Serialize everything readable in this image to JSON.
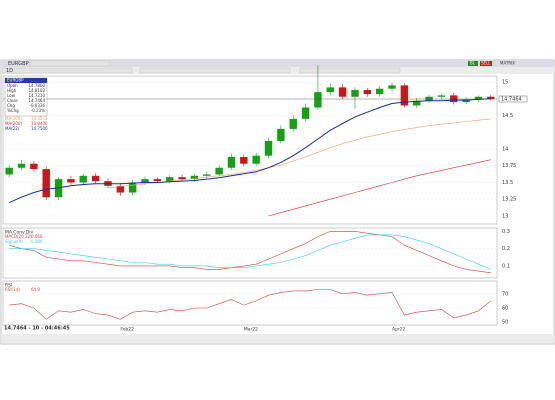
{
  "toolbar": {
    "symbol": "EURGBP",
    "interval": "1D",
    "status_items": [
      "BL",
      "SELL",
      "MATRIX"
    ]
  },
  "data_box": {
    "title": "EURGBP",
    "rows": [
      [
        "Open",
        "14.7800"
      ],
      [
        "High",
        "14.8102"
      ],
      [
        "Low",
        "14.7210"
      ],
      [
        "Close",
        "14.7464"
      ],
      [
        "Chg",
        "-0.0336"
      ],
      [
        "%Chg",
        "-0.23%"
      ]
    ]
  },
  "status": "14.7464 - 10 - 04:46:45",
  "xticks": [
    {
      "index": 9,
      "label": "Feb22"
    },
    {
      "index": 19,
      "label": "Mar22"
    },
    {
      "index": 31,
      "label": "Apr22"
    }
  ],
  "chart_data": [
    {
      "type": "candlestick",
      "ylim": [
        12.88,
        15.09
      ],
      "yticks": [
        13,
        13.25,
        13.5,
        13.75,
        14,
        14.5,
        15
      ],
      "grid": true,
      "open": [
        13.62,
        13.72,
        13.78,
        13.7,
        13.28,
        13.55,
        13.5,
        13.6,
        13.52,
        13.45,
        13.35,
        13.5,
        13.55,
        13.52,
        13.58,
        13.55,
        13.6,
        13.62,
        13.72,
        13.88,
        13.78,
        13.9,
        14.12,
        14.3,
        14.45,
        14.62,
        14.85,
        14.92,
        14.78,
        14.88,
        14.82,
        14.9,
        14.95,
        14.65,
        14.72,
        14.78,
        14.8,
        14.7,
        14.74,
        14.78
      ],
      "high": [
        13.76,
        13.84,
        13.82,
        13.74,
        13.58,
        13.6,
        13.63,
        13.64,
        13.56,
        13.49,
        13.54,
        13.59,
        13.58,
        13.61,
        13.62,
        13.63,
        13.66,
        13.76,
        13.93,
        13.92,
        13.94,
        14.17,
        14.35,
        14.5,
        14.68,
        15.25,
        14.98,
        14.97,
        14.92,
        14.91,
        14.94,
        14.99,
        14.98,
        14.76,
        14.81,
        14.83,
        14.84,
        14.77,
        14.8,
        14.81
      ],
      "low": [
        13.58,
        13.68,
        13.66,
        13.24,
        13.24,
        13.46,
        13.46,
        13.48,
        13.42,
        13.3,
        13.31,
        13.46,
        13.49,
        13.49,
        13.52,
        13.51,
        13.57,
        13.59,
        13.69,
        13.74,
        13.75,
        13.86,
        14.08,
        14.26,
        14.41,
        14.58,
        14.8,
        14.74,
        14.6,
        14.78,
        14.78,
        14.86,
        14.62,
        14.61,
        14.69,
        14.74,
        14.66,
        14.67,
        14.7,
        14.72
      ],
      "close": [
        13.72,
        13.78,
        13.7,
        13.28,
        13.55,
        13.5,
        13.6,
        13.52,
        13.45,
        13.35,
        13.5,
        13.55,
        13.52,
        13.58,
        13.55,
        13.6,
        13.62,
        13.72,
        13.88,
        13.78,
        13.9,
        14.12,
        14.3,
        14.45,
        14.62,
        14.85,
        14.92,
        14.78,
        14.88,
        14.82,
        14.9,
        14.95,
        14.65,
        14.72,
        14.78,
        14.8,
        14.7,
        14.74,
        14.78,
        14.7464
      ],
      "series": [
        {
          "name": "MA(100)",
          "legend_value": "14.4502",
          "color": "#f0a070",
          "values": [
            null,
            null,
            null,
            null,
            null,
            null,
            null,
            null,
            13.42,
            13.44,
            13.46,
            13.48,
            13.5,
            13.52,
            13.54,
            13.56,
            13.58,
            13.6,
            13.62,
            13.65,
            13.68,
            13.72,
            13.76,
            13.82,
            13.88,
            13.95,
            14.02,
            14.08,
            14.13,
            14.18,
            14.22,
            14.26,
            14.29,
            14.32,
            14.35,
            14.37,
            14.39,
            14.41,
            14.43,
            14.45
          ]
        },
        {
          "name": "MA(200)",
          "legend_value": "13.8400",
          "color": "#d03030",
          "values": [
            null,
            null,
            null,
            null,
            null,
            null,
            null,
            null,
            null,
            null,
            null,
            null,
            null,
            null,
            null,
            null,
            null,
            null,
            null,
            null,
            null,
            13.0,
            13.05,
            13.1,
            13.15,
            13.2,
            13.25,
            13.3,
            13.35,
            13.4,
            13.45,
            13.5,
            13.55,
            13.6,
            13.64,
            13.68,
            13.72,
            13.76,
            13.8,
            13.84
          ]
        },
        {
          "name": "MA(22)",
          "legend_value": "14.7500",
          "color": "#1a2aa0",
          "values": [
            13.2,
            13.28,
            13.35,
            13.4,
            13.42,
            13.45,
            13.47,
            13.48,
            13.48,
            13.48,
            13.49,
            13.5,
            13.5,
            13.51,
            13.52,
            13.53,
            13.55,
            13.57,
            13.6,
            13.63,
            13.66,
            13.72,
            13.8,
            13.9,
            14.02,
            14.15,
            14.28,
            14.38,
            14.48,
            14.55,
            14.62,
            14.68,
            14.7,
            14.71,
            14.72,
            14.72,
            14.73,
            14.73,
            14.74,
            14.75
          ]
        }
      ]
    },
    {
      "type": "line",
      "title": "MA.Conv.Div",
      "ylim": [
        0.03,
        0.32
      ],
      "yticks": [
        0.1,
        0.2,
        0.3
      ],
      "grid": true,
      "series": [
        {
          "name": "MACD(26,12)",
          "legend_value": "0.060",
          "color": "#d04040",
          "values": [
            0.22,
            0.2,
            0.19,
            0.15,
            0.14,
            0.13,
            0.13,
            0.12,
            0.11,
            0.1,
            0.1,
            0.1,
            0.1,
            0.1,
            0.09,
            0.09,
            0.08,
            0.08,
            0.09,
            0.1,
            0.11,
            0.14,
            0.17,
            0.2,
            0.23,
            0.27,
            0.3,
            0.3,
            0.3,
            0.29,
            0.28,
            0.27,
            0.22,
            0.19,
            0.16,
            0.13,
            0.1,
            0.08,
            0.07,
            0.06
          ]
        },
        {
          "name": "Signal(9)",
          "legend_value": "0.080",
          "color": "#40c8e0",
          "values": [
            0.2,
            0.2,
            0.2,
            0.19,
            0.18,
            0.17,
            0.16,
            0.15,
            0.14,
            0.13,
            0.12,
            0.12,
            0.11,
            0.11,
            0.1,
            0.1,
            0.1,
            0.09,
            0.09,
            0.09,
            0.1,
            0.11,
            0.12,
            0.14,
            0.16,
            0.19,
            0.22,
            0.24,
            0.26,
            0.28,
            0.28,
            0.28,
            0.27,
            0.25,
            0.23,
            0.2,
            0.17,
            0.14,
            0.11,
            0.08
          ]
        }
      ]
    },
    {
      "type": "line",
      "title": "RSI",
      "ylim": [
        48,
        79
      ],
      "yticks": [
        50,
        60,
        70
      ],
      "grid": true,
      "series": [
        {
          "name": "RSI(14)",
          "legend_value": "64.9",
          "color": "#d04040",
          "values": [
            62,
            63,
            60,
            52,
            58,
            57,
            59,
            56,
            55,
            52,
            57,
            58,
            57,
            59,
            58,
            60,
            60,
            63,
            66,
            62,
            65,
            69,
            71,
            72,
            72,
            73,
            73,
            70,
            71,
            69,
            70,
            71,
            55,
            57,
            58,
            59,
            53,
            55,
            58,
            64.9
          ]
        }
      ]
    }
  ]
}
